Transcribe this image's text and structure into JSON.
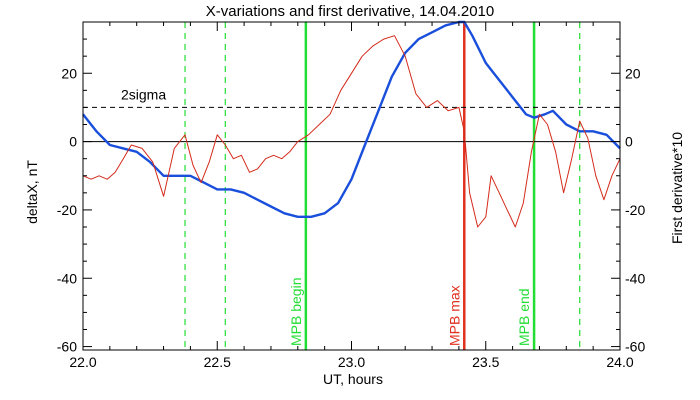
{
  "chart_data": {
    "type": "line",
    "title": "X-variations and first derivative, 14.04.2010",
    "xlabel": "UT, hours",
    "ylabel_left": "deltaX, nT",
    "ylabel_right": "First derivative*10",
    "xlim": [
      22.0,
      24.0
    ],
    "ylim": [
      -61,
      35
    ],
    "x_ticks": [
      22.0,
      22.5,
      23.0,
      23.5,
      24.0
    ],
    "x_tick_labels": [
      "22.0",
      "22.5",
      "23.0",
      "23.5",
      "24.0"
    ],
    "y_ticks": [
      -60,
      -40,
      -20,
      0,
      20
    ],
    "y_tick_labels": [
      "-60",
      "-40",
      "-20",
      "0",
      "20"
    ],
    "grid": false,
    "colors": {
      "deltaX": "#1a4fdc",
      "derivative": "#d42a1a",
      "mpb": "#22dd33",
      "mpb_max": "#e03020",
      "axes": "#000000"
    },
    "series": [
      {
        "name": "deltaX, nT",
        "axis": "left",
        "x": [
          22.0,
          22.05,
          22.1,
          22.15,
          22.2,
          22.25,
          22.3,
          22.35,
          22.4,
          22.45,
          22.5,
          22.55,
          22.6,
          22.65,
          22.7,
          22.75,
          22.8,
          22.85,
          22.9,
          22.95,
          23.0,
          23.05,
          23.1,
          23.15,
          23.2,
          23.25,
          23.3,
          23.35,
          23.4,
          23.42,
          23.45,
          23.5,
          23.55,
          23.6,
          23.65,
          23.68,
          23.72,
          23.75,
          23.8,
          23.85,
          23.9,
          23.95,
          24.0
        ],
        "y": [
          8,
          3,
          -1,
          -2,
          -3,
          -6,
          -10,
          -10,
          -10,
          -12,
          -14,
          -14,
          -15,
          -17,
          -19,
          -21,
          -22,
          -22,
          -21,
          -18,
          -11,
          -1,
          9,
          19,
          26,
          30,
          32,
          34,
          35,
          35,
          31,
          23,
          18,
          13,
          8,
          7,
          8,
          9,
          5,
          3,
          3,
          2,
          -2
        ]
      },
      {
        "name": "First derivative*10",
        "axis": "right",
        "x": [
          22.0,
          22.03,
          22.06,
          22.09,
          22.12,
          22.15,
          22.18,
          22.22,
          22.26,
          22.3,
          22.34,
          22.38,
          22.41,
          22.44,
          22.47,
          22.5,
          22.53,
          22.56,
          22.59,
          22.62,
          22.65,
          22.68,
          22.71,
          22.74,
          22.77,
          22.8,
          22.84,
          22.88,
          22.92,
          22.96,
          23.0,
          23.04,
          23.08,
          23.12,
          23.16,
          23.2,
          23.24,
          23.28,
          23.32,
          23.36,
          23.4,
          23.42,
          23.44,
          23.47,
          23.5,
          23.52,
          23.55,
          23.58,
          23.61,
          23.64,
          23.67,
          23.7,
          23.73,
          23.76,
          23.79,
          23.82,
          23.85,
          23.88,
          23.91,
          23.94,
          23.97,
          24.0
        ],
        "y": [
          -10,
          -11,
          -10,
          -11,
          -9,
          -5,
          -1,
          -2,
          -6,
          -16,
          -2,
          2,
          -7,
          -12,
          -6,
          2,
          -1,
          -5,
          -4,
          -9,
          -8,
          -5,
          -4,
          -5,
          -3,
          0,
          2,
          5,
          8,
          15,
          20,
          25,
          28,
          30,
          31,
          25,
          14,
          10,
          12,
          9,
          10,
          3,
          -15,
          -25,
          -22,
          -10,
          -15,
          -20,
          -25,
          -18,
          -3,
          8,
          5,
          -3,
          -15,
          -5,
          6,
          1,
          -10,
          -17,
          -10,
          -5
        ]
      }
    ],
    "reference_lines": [
      {
        "label": "2sigma",
        "value": 10,
        "style": "dashed"
      },
      {
        "label": "",
        "value": 0,
        "style": "solid"
      }
    ],
    "markers": [
      {
        "label": "MPB begin",
        "x": 22.83,
        "style": "solid",
        "color": "green"
      },
      {
        "label": "MPB max",
        "x": 23.42,
        "style": "solid",
        "color": "red"
      },
      {
        "label": "MPB end",
        "x": 23.68,
        "style": "solid",
        "color": "green"
      },
      {
        "label": "",
        "x": 22.38,
        "style": "dashed",
        "color": "green"
      },
      {
        "label": "",
        "x": 22.53,
        "style": "dashed",
        "color": "green"
      },
      {
        "label": "",
        "x": 23.85,
        "style": "dashed",
        "color": "green"
      }
    ]
  }
}
